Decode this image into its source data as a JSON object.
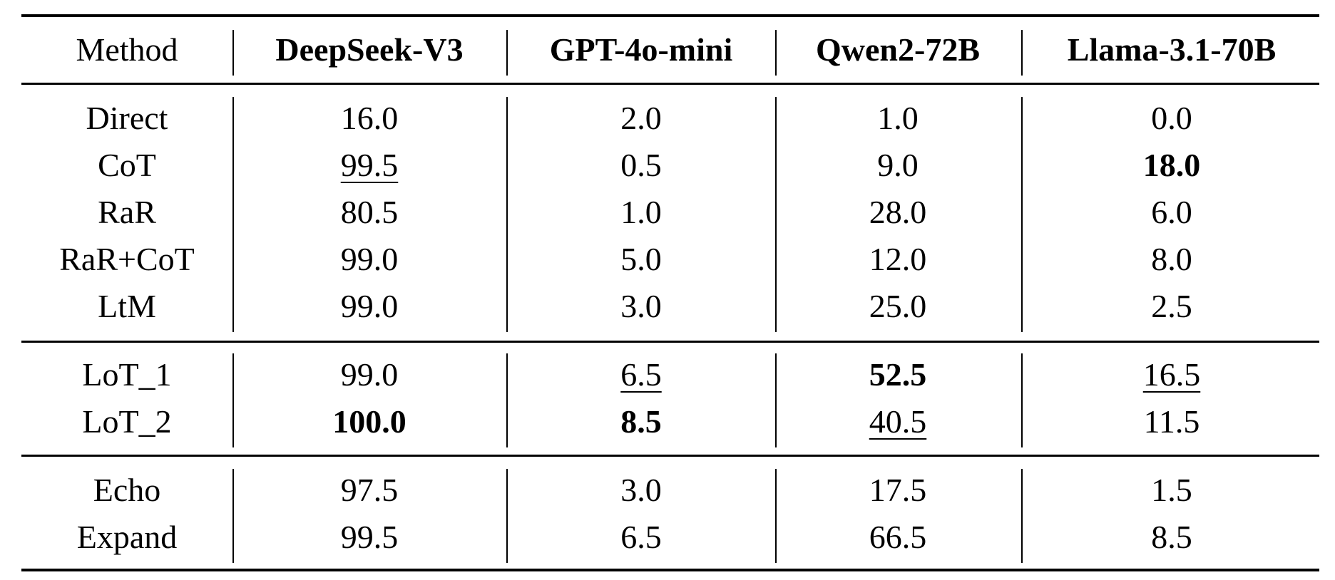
{
  "table": {
    "header": [
      "Method",
      {
        "text": "DeepSeek-V3",
        "style": "bold"
      },
      {
        "text": "GPT-4o-mini",
        "style": "bold"
      },
      {
        "text": "Qwen2-72B",
        "style": "bold"
      },
      {
        "text": "Llama-3.1-70B",
        "style": "bold"
      }
    ],
    "groups": [
      {
        "rows": [
          [
            "Direct",
            "16.0",
            "2.0",
            "1.0",
            "0.0"
          ],
          [
            "CoT",
            {
              "text": "99.5",
              "style": "underline"
            },
            "0.5",
            "9.0",
            {
              "text": "18.0",
              "style": "bold"
            }
          ],
          [
            "RaR",
            "80.5",
            "1.0",
            "28.0",
            "6.0"
          ],
          [
            "RaR+CoT",
            "99.0",
            "5.0",
            "12.0",
            "8.0"
          ],
          [
            "LtM",
            "99.0",
            "3.0",
            "25.0",
            "2.5"
          ]
        ]
      },
      {
        "rows": [
          [
            "LoT_1",
            "99.0",
            {
              "text": "6.5",
              "style": "underline"
            },
            {
              "text": "52.5",
              "style": "bold"
            },
            {
              "text": "16.5",
              "style": "underline"
            }
          ],
          [
            "LoT_2",
            {
              "text": "100.0",
              "style": "bold"
            },
            {
              "text": "8.5",
              "style": "bold"
            },
            {
              "text": "40.5",
              "style": "underline"
            },
            "11.5"
          ]
        ]
      },
      {
        "rows": [
          [
            "Echo",
            "97.5",
            "3.0",
            "17.5",
            "1.5"
          ],
          [
            "Expand",
            "99.5",
            "6.5",
            "66.5",
            "8.5"
          ]
        ]
      }
    ]
  }
}
